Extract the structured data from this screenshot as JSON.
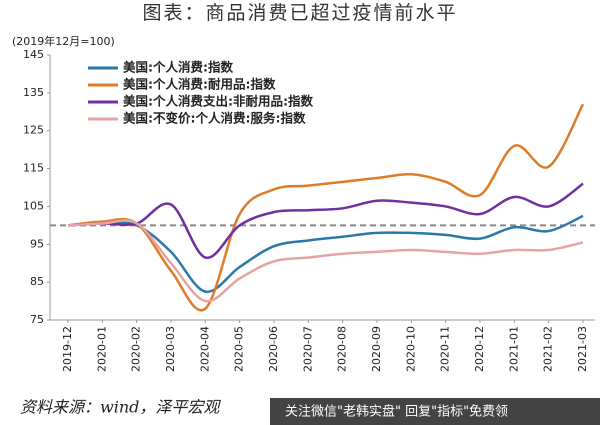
{
  "chart_data": {
    "type": "line",
    "title": "图表：商品消费已超过疫情前水平",
    "subtitle": "(2019年12月=100)",
    "categories": [
      "2019-12",
      "2020-01",
      "2020-02",
      "2020-03",
      "2020-04",
      "2020-05",
      "2020-06",
      "2020-07",
      "2020-08",
      "2020-09",
      "2020-10",
      "2020-11",
      "2020-12",
      "2021-01",
      "2021-02",
      "2021-03"
    ],
    "series": [
      {
        "name": "美国:个人消费:指数",
        "color": "#2b78ad",
        "values": [
          100,
          100.5,
          100,
          93,
          82.5,
          89,
          94.5,
          96,
          97,
          98,
          98,
          97.5,
          96.5,
          99.5,
          98.5,
          102.5
        ]
      },
      {
        "name": "美国:个人消费:耐用品:指数",
        "color": "#e07b27",
        "values": [
          100,
          101,
          100.5,
          88,
          78,
          103,
          109.5,
          110.5,
          111.5,
          112.5,
          113.5,
          111.5,
          108,
          121,
          115.5,
          132
        ]
      },
      {
        "name": "美国:个人消费支出:非耐用品:指数",
        "color": "#7030a0",
        "values": [
          100,
          100.5,
          100.5,
          105.5,
          91.5,
          100,
          103.5,
          104,
          104.5,
          106.5,
          106,
          105,
          103,
          107.5,
          105,
          111
        ]
      },
      {
        "name": "美国:不变价:个人消费:服务:指数",
        "color": "#e6a3a3",
        "values": [
          100,
          100.5,
          100.5,
          90,
          80,
          86,
          90.5,
          91.5,
          92.5,
          93,
          93.5,
          93,
          92.5,
          93.5,
          93.5,
          95.5
        ]
      }
    ],
    "reference_line": 100,
    "ylim": [
      75,
      145
    ],
    "yticks": [
      75,
      85,
      95,
      105,
      115,
      125,
      135,
      145
    ],
    "source": "资料来源：wind，泽平宏观",
    "banner": "关注微信\"老韩实盘\" 回复\"指标\"免费领"
  }
}
